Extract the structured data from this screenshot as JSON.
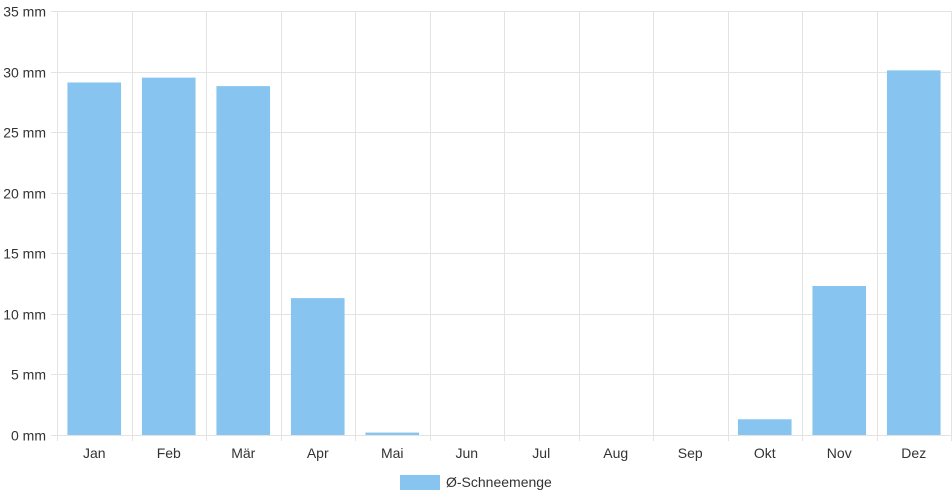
{
  "chart_data": {
    "type": "bar",
    "categories": [
      "Jan",
      "Feb",
      "Mär",
      "Apr",
      "Mai",
      "Jun",
      "Jul",
      "Aug",
      "Sep",
      "Okt",
      "Nov",
      "Dez"
    ],
    "series": [
      {
        "name": "Ø-Schneemenge",
        "values": [
          29.1,
          29.5,
          28.8,
          11.3,
          0.2,
          0,
          0,
          0,
          0,
          1.3,
          12.3,
          30.1
        ],
        "color": "#87C5F0"
      }
    ],
    "y_ticks": [
      "0 mm",
      "5 mm",
      "10 mm",
      "15 mm",
      "20 mm",
      "25 mm",
      "30 mm",
      "35 mm"
    ],
    "ylim": [
      0,
      35
    ],
    "grid": true,
    "legend_position": "bottom-center"
  }
}
